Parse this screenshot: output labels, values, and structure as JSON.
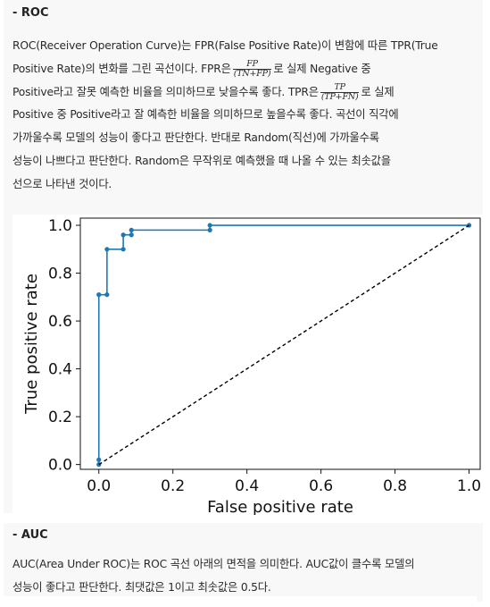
{
  "roc_section": {
    "heading": "- ROC",
    "line1_a": "ROC(Receiver Operation Curve)는 FPR(False Positive Rate)이 변함에 따른 TPR(True",
    "line2_a": "Positive Rate)의 변화를 그린 곡선이다. FPR은",
    "fpr_num": "FP",
    "fpr_den": "(TN+FP)",
    "line2_b": "로 실제 Negative 중",
    "line3_a": "Positive라고 잘못 예측한 비율을 의미하므로 낮을수록 좋다. TPR은",
    "tpr_num": "TP",
    "tpr_den": "(TP+FN)",
    "line3_b": "로 실제",
    "line4": "Positive 중 Positive라고 잘 예측한 비율을 의미하므로 높을수록 좋다. 곡선이 직각에",
    "line5": "가까울수록 모델의 성능이 좋다고 판단한다. 반대로 Random(직선)에 가까울수록",
    "line6": "성능이 나쁘다고 판단한다. Random은 무작위로 예측했을 때 나올 수 있는 최솟값을",
    "line7": "선으로 나타낸 것이다."
  },
  "auc_section": {
    "heading": "- AUC",
    "line1": "AUC(Area Under ROC)는 ROC 곡선 아래의 면적을 의미한다. AUC값이 클수록 모델의",
    "line2": "성능이 좋다고 판단한다. 최댓값은 1이고 최솟값은 0.5다."
  },
  "chart_data": {
    "type": "line",
    "xlabel": "False positive rate",
    "ylabel": "True positive rate",
    "xlim": [
      -0.05,
      1.03
    ],
    "ylim": [
      -0.02,
      1.03
    ],
    "xticks": [
      "0.0",
      "0.2",
      "0.4",
      "0.6",
      "0.8",
      "1.0"
    ],
    "yticks": [
      "0.0",
      "0.2",
      "0.4",
      "0.6",
      "0.8",
      "1.0"
    ],
    "grid": false,
    "series": [
      {
        "style": "solid-with-markers",
        "color": "#1f77b4",
        "x": [
          0.0,
          0.0,
          0.0,
          0.022,
          0.022,
          0.066,
          0.066,
          0.088,
          0.088,
          0.3,
          0.3,
          1.0
        ],
        "y": [
          0.0,
          0.02,
          0.71,
          0.71,
          0.9,
          0.9,
          0.96,
          0.96,
          0.98,
          0.98,
          1.0,
          1.0
        ]
      },
      {
        "style": "dashed",
        "color": "#000000",
        "x": [
          0.0,
          1.0
        ],
        "y": [
          0.0,
          1.0
        ]
      }
    ]
  }
}
